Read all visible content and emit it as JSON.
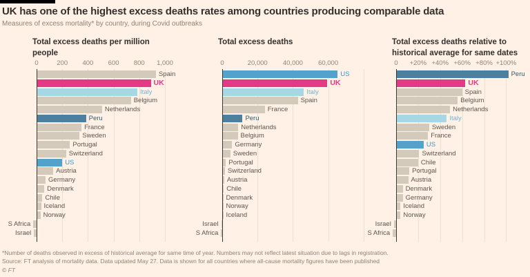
{
  "header": {
    "title": "UK has one of the highest excess deaths rates among countries producing comparable data",
    "subtitle": "Measures of excess mortality* by country, during Covid outbreaks"
  },
  "footer": {
    "note": "*Number of deaths observed in excess of historical average for same time of year. Numbers may not reflect latest situation due to lags in registration.",
    "source": "Source: FT analysis of mortality data. Data updated May 27. Data is shown for all countries where all-cause mortality figures have been published",
    "copyright": "© FT"
  },
  "colors": {
    "background": "#fff1e5",
    "bar_default": "#d4cabc",
    "uk_pink": "#e23a85",
    "italy_light_blue": "#a5d8e4",
    "us_blue": "#52a2cc",
    "peru_steel_blue": "#4d7f9e",
    "gridline": "#ecdfd0",
    "axis_line": "#3a3732",
    "text_dark": "#33302e",
    "text_muted": "#8f8273",
    "label_default": "#5d564c",
    "label_colors": {
      "UK": "#e23a85",
      "Italy": "#5fbcd7",
      "US": "#3c93c4",
      "Peru": "#205d82"
    }
  },
  "highlights": {
    "UK": "uk_pink",
    "Italy": "italy_light_blue",
    "US": "us_blue",
    "Peru": "peru_steel_blue"
  },
  "chart_data": [
    {
      "type": "bar",
      "title": "Total excess deaths per million people",
      "xlabel": "",
      "ylabel": "",
      "xlim": [
        -60,
        1050
      ],
      "grid": true,
      "ticks": [
        {
          "value": 0,
          "label": "0"
        },
        {
          "value": 200,
          "label": "200"
        },
        {
          "value": 400,
          "label": "400"
        },
        {
          "value": 600,
          "label": "600"
        },
        {
          "value": 800,
          "label": "800"
        },
        {
          "value": 1000,
          "label": "1,000"
        }
      ],
      "categories": [
        "Spain",
        "UK",
        "Italy",
        "Belgium",
        "Netherlands",
        "Peru",
        "France",
        "Sweden",
        "Portugal",
        "Switzerland",
        "US",
        "Austria",
        "Germany",
        "Denmark",
        "Chile",
        "Iceland",
        "Norway",
        "S Africa",
        "Israel"
      ],
      "values": [
        930,
        890,
        785,
        735,
        510,
        385,
        350,
        335,
        260,
        230,
        200,
        130,
        70,
        60,
        45,
        35,
        30,
        -25,
        -20
      ]
    },
    {
      "type": "bar",
      "title": "Total excess deaths",
      "xlabel": "",
      "ylabel": "",
      "xlim": [
        -2000,
        82000
      ],
      "grid": true,
      "ticks": [
        {
          "value": 0,
          "label": "0"
        },
        {
          "value": 20000,
          "label": "20,000"
        },
        {
          "value": 40000,
          "label": "40,000"
        },
        {
          "value": 60000,
          "label": "60,000"
        },
        {
          "value": 80000,
          "label": ""
        }
      ],
      "categories": [
        "US",
        "UK",
        "Italy",
        "Spain",
        "France",
        "Peru",
        "Netherlands",
        "Belgium",
        "Germany",
        "Sweden",
        "Portugal",
        "Switzerland",
        "Austria",
        "Chile",
        "Denmark",
        "Norway",
        "Iceland",
        "Israel",
        "S Africa"
      ],
      "values": [
        65400,
        59500,
        46200,
        42800,
        24100,
        11500,
        9100,
        8800,
        5600,
        4600,
        2100,
        1500,
        1100,
        900,
        600,
        450,
        300,
        -300,
        -600
      ]
    },
    {
      "type": "bar",
      "title": "Total excess deaths relative to historical average for same dates",
      "xlabel": "",
      "ylabel": "",
      "xlim": [
        -8,
        115
      ],
      "grid": true,
      "ticks": [
        {
          "value": 0,
          "label": "0"
        },
        {
          "value": 20,
          "label": "+20%"
        },
        {
          "value": 40,
          "label": "+40%"
        },
        {
          "value": 60,
          "label": "+60%"
        },
        {
          "value": 80,
          "label": "+80%"
        },
        {
          "value": 100,
          "label": "+100%"
        }
      ],
      "categories": [
        "Peru",
        "UK",
        "Spain",
        "Belgium",
        "Netherlands",
        "Italy",
        "Sweden",
        "France",
        "US",
        "Switzerland",
        "Chile",
        "Portugal",
        "Austria",
        "Denmark",
        "Germany",
        "Iceland",
        "Norway",
        "Israel",
        "S Africa"
      ],
      "values": [
        102,
        63,
        60,
        56,
        49,
        46,
        30,
        29,
        25,
        21,
        20,
        12,
        11,
        6,
        6,
        4,
        4,
        -2,
        -3
      ]
    }
  ]
}
